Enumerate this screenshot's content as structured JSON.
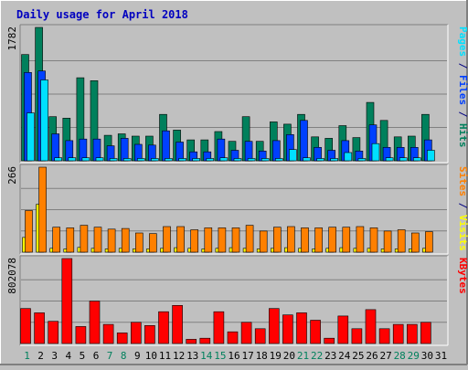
{
  "chart_data": {
    "type": "bar",
    "title": "Daily usage for April 2018",
    "days": [
      "1",
      "2",
      "3",
      "4",
      "5",
      "6",
      "7",
      "8",
      "9",
      "10",
      "11",
      "12",
      "13",
      "14",
      "15",
      "16",
      "17",
      "18",
      "19",
      "20",
      "21",
      "22",
      "23",
      "24",
      "25",
      "26",
      "27",
      "28",
      "29",
      "30",
      "31"
    ],
    "weekend_days": [
      1,
      7,
      8,
      14,
      15,
      21,
      22,
      28,
      29
    ],
    "panels": [
      {
        "id": "requests",
        "max_label": "1782",
        "ymax": 1782,
        "legend": [
          {
            "text": "Pages",
            "color": "#00e0ff"
          },
          {
            "text": " / ",
            "color": "#000080"
          },
          {
            "text": "Files",
            "color": "#0040ff"
          },
          {
            "text": " / ",
            "color": "#000080"
          },
          {
            "text": "Hits",
            "color": "#00805c"
          }
        ],
        "series": [
          {
            "name": "Hits",
            "color": "#00805c",
            "values": [
              1420,
              1782,
              590,
              570,
              1110,
              1070,
              340,
              360,
              330,
              330,
              620,
              410,
              280,
              280,
              390,
              260,
              590,
              260,
              520,
              490,
              620,
              320,
              300,
              470,
              310,
              780,
              540,
              320,
              330,
              620
            ]
          },
          {
            "name": "Files",
            "color": "#0040ff",
            "values": [
              1180,
              1200,
              360,
              270,
              290,
              290,
              200,
              300,
              220,
              210,
              400,
              250,
              120,
              120,
              290,
              140,
              260,
              130,
              270,
              350,
              540,
              180,
              140,
              270,
              130,
              480,
              180,
              180,
              180,
              280
            ]
          },
          {
            "name": "Pages",
            "color": "#00e0ff",
            "values": [
              640,
              1080,
              40,
              40,
              40,
              40,
              30,
              30,
              30,
              30,
              30,
              30,
              30,
              30,
              40,
              30,
              30,
              30,
              30,
              150,
              40,
              30,
              30,
              110,
              30,
              230,
              40,
              40,
              40,
              140
            ]
          }
        ]
      },
      {
        "id": "visits",
        "max_label": "266",
        "ymax": 266,
        "legend": [
          {
            "text": "Sites",
            "color": "#ff8000"
          },
          {
            "text": " / ",
            "color": "#000080"
          },
          {
            "text": "Visits",
            "color": "#ffff00"
          }
        ],
        "series": [
          {
            "name": "Visits",
            "color": "#ffff00",
            "values": [
              46,
              150,
              12,
              10,
              15,
              12,
              10,
              12,
              10,
              10,
              12,
              14,
              12,
              10,
              12,
              14,
              12,
              10,
              12,
              14,
              12,
              10,
              12,
              14,
              12,
              12,
              10,
              10,
              10,
              12
            ]
          },
          {
            "name": "Sites",
            "color": "#ff8000",
            "values": [
              130,
              266,
              78,
              76,
              84,
              78,
              72,
              74,
              60,
              58,
              80,
              80,
              70,
              76,
              76,
              76,
              84,
              66,
              78,
              80,
              76,
              76,
              78,
              78,
              80,
              76,
              66,
              70,
              60,
              64
            ]
          }
        ]
      },
      {
        "id": "kbytes",
        "max_label": "802078",
        "ymax": 802078,
        "legend": [
          {
            "text": "KBytes",
            "color": "#ff0000"
          }
        ],
        "series": [
          {
            "name": "KBytes",
            "color": "#ff0000",
            "values": [
              330000,
              290000,
              210000,
              802078,
              160000,
              400000,
              180000,
              100000,
              200000,
              170000,
              300000,
              360000,
              40000,
              50000,
              300000,
              110000,
              200000,
              140000,
              330000,
              270000,
              290000,
              220000,
              50000,
              260000,
              140000,
              320000,
              140000,
              180000,
              180000,
              200000
            ]
          }
        ]
      }
    ]
  }
}
